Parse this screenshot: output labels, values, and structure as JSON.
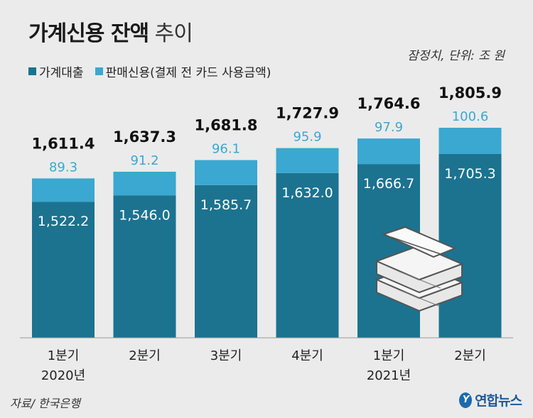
{
  "title_bold": "가계신용 잔액",
  "title_light": "추이",
  "note": "잠정치, 단위: 조 원",
  "legend": [
    {
      "label": "가계대출",
      "color": "#1b7390"
    },
    {
      "label": "판매신용(결제 전 카드 사용금액)",
      "color": "#3aa8d0"
    }
  ],
  "source": "자료/ 한국은행",
  "logo": "연합뉴스",
  "chart_data": {
    "type": "bar",
    "stacked": true,
    "categories": [
      "1분기",
      "2분기",
      "3분기",
      "4분기",
      "1분기",
      "2분기"
    ],
    "year_labels": [
      "2020년",
      "",
      "",
      "",
      "2021년",
      ""
    ],
    "totals": [
      "1,611.4",
      "1,637.3",
      "1,681.8",
      "1,727.9",
      "1,764.6",
      "1,805.9"
    ],
    "series": [
      {
        "name": "가계대출",
        "color": "#1b7390",
        "values": [
          1522.2,
          1546.0,
          1585.7,
          1632.0,
          1666.7,
          1705.3
        ],
        "labels": [
          "1,522.2",
          "1,546.0",
          "1,585.7",
          "1,632.0",
          "1,666.7",
          "1,705.3"
        ]
      },
      {
        "name": "판매신용(결제 전 카드 사용금액)",
        "color": "#3aa8d0",
        "values": [
          89.3,
          91.2,
          96.1,
          95.9,
          97.9,
          100.6
        ],
        "labels": [
          "89.3",
          "91.2",
          "96.1",
          "95.9",
          "97.9",
          "100.6"
        ]
      }
    ],
    "ylim": [
      0,
      1805.9
    ]
  }
}
